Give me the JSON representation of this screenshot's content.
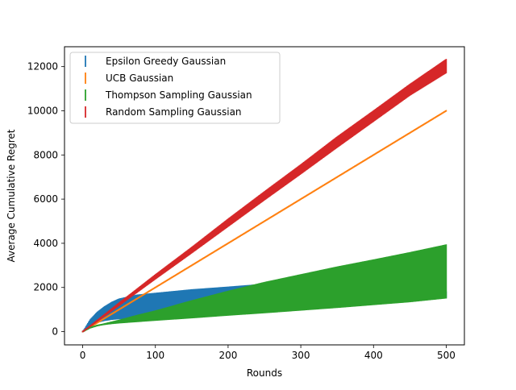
{
  "chart_data": {
    "type": "errorbar",
    "title": "",
    "xlabel": "Rounds",
    "ylabel": "Average Cumulative Regret",
    "xlim": [
      -25,
      525
    ],
    "ylim": [
      -600,
      12900
    ],
    "x_ticks": [
      0,
      100,
      200,
      300,
      400,
      500
    ],
    "y_ticks": [
      0,
      2000,
      4000,
      6000,
      8000,
      10000,
      12000
    ],
    "x_tick_labels": [
      "0",
      "100",
      "200",
      "300",
      "400",
      "500"
    ],
    "y_tick_labels": [
      "0",
      "2000",
      "4000",
      "6000",
      "8000",
      "10000",
      "12000"
    ],
    "grid": false,
    "legend_position": "top-left",
    "x_points": [
      0,
      10,
      20,
      30,
      40,
      50,
      75,
      100,
      150,
      200,
      250,
      300,
      350,
      400,
      450,
      500
    ],
    "series": [
      {
        "name": "Epsilon Greedy Gaussian",
        "color": "#1f77b4",
        "lower": [
          0,
          250,
          400,
          480,
          530,
          560,
          620,
          680,
          780,
          880,
          970,
          1080,
          1180,
          1300,
          1420,
          1530
        ],
        "upper": [
          0,
          550,
          900,
          1150,
          1350,
          1500,
          1680,
          1760,
          1920,
          2040,
          2170,
          2280,
          2280,
          2260,
          2220,
          1820
        ]
      },
      {
        "name": "UCB Gaussian",
        "color": "#ff7f0e",
        "lower": [
          0,
          200,
          400,
          600,
          800,
          1000,
          1500,
          2000,
          3000,
          4000,
          5000,
          6000,
          7000,
          8000,
          9000,
          10000
        ],
        "upper": [
          0,
          200,
          400,
          600,
          800,
          1000,
          1500,
          2000,
          3000,
          4000,
          5000,
          6000,
          7000,
          8000,
          9000,
          10000
        ]
      },
      {
        "name": "Thompson Sampling Gaussian",
        "color": "#2ca02c",
        "lower": [
          0,
          150,
          250,
          300,
          340,
          370,
          430,
          490,
          600,
          720,
          830,
          950,
          1070,
          1200,
          1330,
          1500
        ],
        "upper": [
          0,
          200,
          300,
          380,
          460,
          540,
          760,
          960,
          1420,
          1850,
          2250,
          2600,
          2950,
          3270,
          3600,
          3950
        ]
      },
      {
        "name": "Random Sampling Gaussian",
        "color": "#d62728",
        "lower": [
          0,
          200,
          440,
          680,
          920,
          1160,
          1760,
          2360,
          3540,
          4740,
          5940,
          7120,
          8320,
          9500,
          10680,
          11700
        ],
        "upper": [
          0,
          280,
          540,
          800,
          1060,
          1320,
          1960,
          2600,
          3840,
          5120,
          6360,
          7580,
          8840,
          10020,
          11220,
          12350
        ]
      }
    ]
  }
}
